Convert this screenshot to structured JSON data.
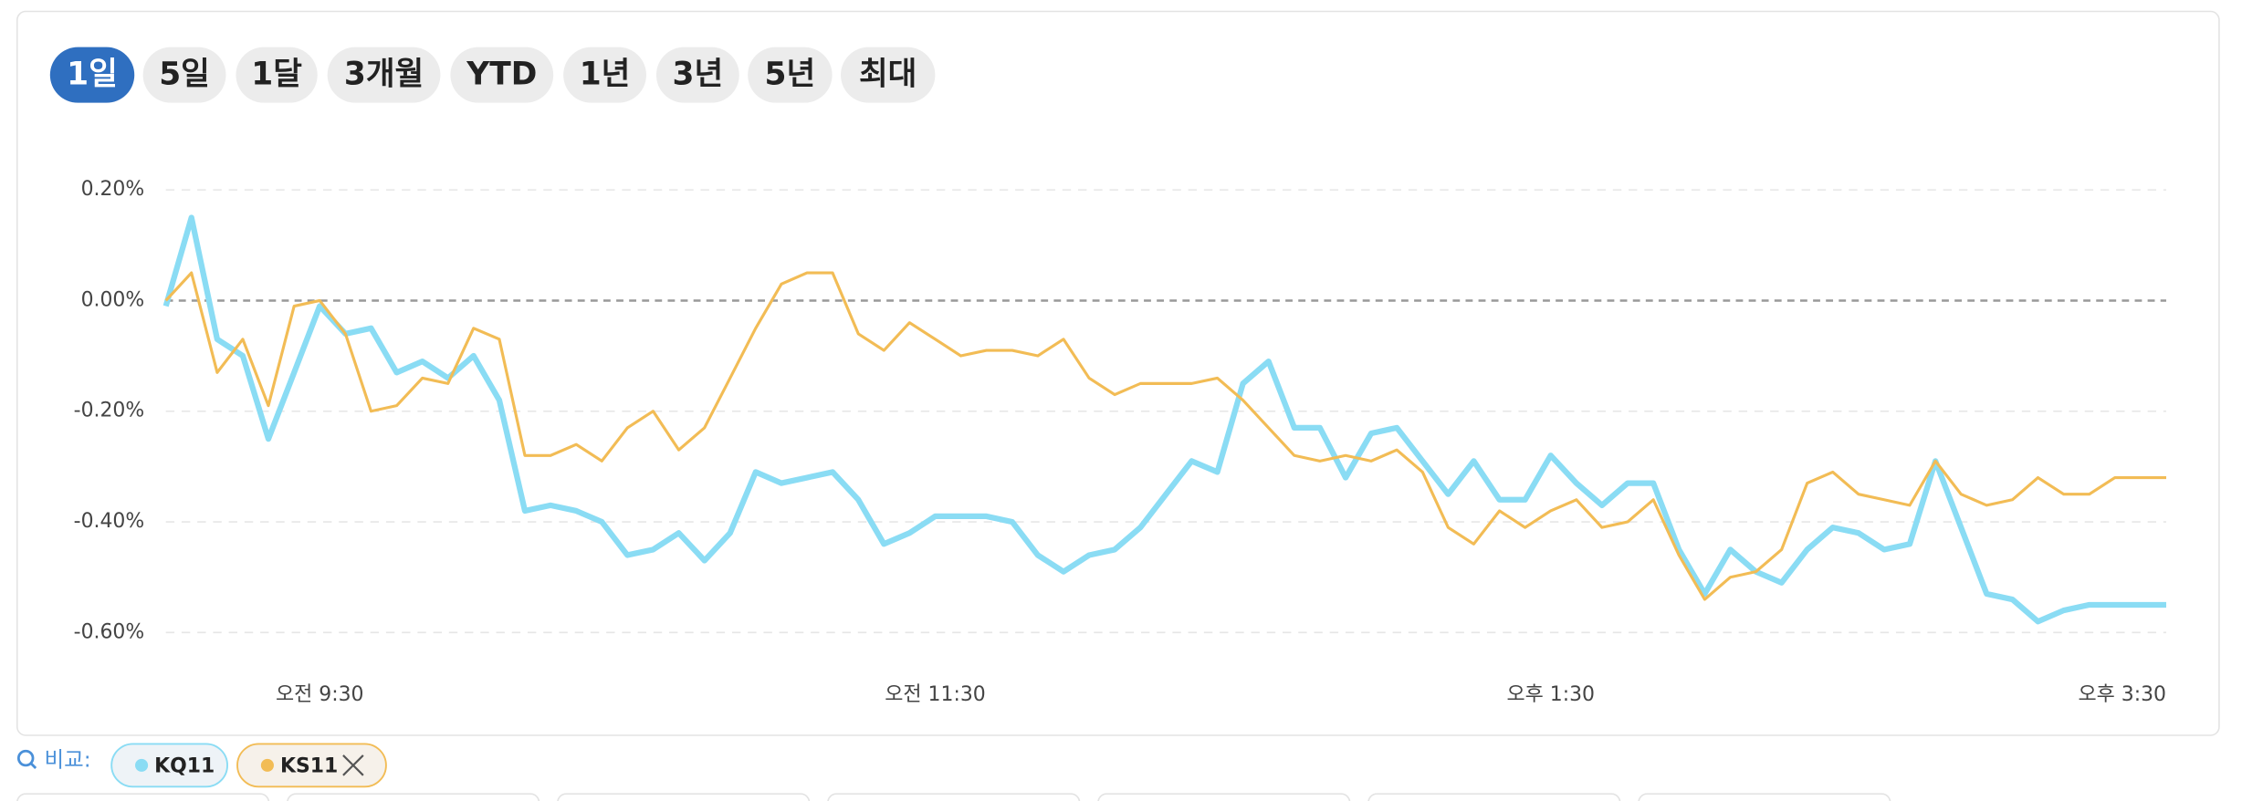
{
  "range_buttons": [
    "1일",
    "5일",
    "1달",
    "3개월",
    "YTD",
    "1년",
    "3년",
    "5년",
    "최대"
  ],
  "active_range": 0,
  "compare_label": "비교:",
  "chart_data": {
    "type": "line",
    "x": [
      0,
      5,
      10,
      15,
      20,
      25,
      30,
      35,
      40,
      45,
      50,
      55,
      60,
      65,
      70,
      75,
      80,
      85,
      90,
      95,
      100,
      105,
      110,
      115,
      120,
      125,
      130,
      135,
      140,
      145,
      150,
      155,
      160,
      165,
      170,
      175,
      180,
      185,
      190,
      195,
      200,
      205,
      210,
      215,
      220,
      225,
      230,
      235,
      240,
      245,
      250,
      255,
      260,
      265,
      270,
      275,
      280,
      285,
      290,
      295,
      300,
      305,
      310,
      315,
      320,
      325,
      330,
      335,
      340,
      345,
      350,
      355,
      360,
      365,
      370,
      375,
      380,
      385,
      390
    ],
    "xlim": [
      0,
      390
    ],
    "xticks": [
      {
        "value": 30,
        "label": "오전 9:30"
      },
      {
        "value": 150,
        "label": "오전 11:30"
      },
      {
        "value": 270,
        "label": "오후 1:30"
      },
      {
        "value": 390,
        "label": "오후 3:30"
      }
    ],
    "ylim": [
      -0.64,
      0.28
    ],
    "yticks": [
      {
        "value": 0.2,
        "label": "0.20%"
      },
      {
        "value": 0,
        "label": "0.00%"
      },
      {
        "value": -0.2,
        "label": "-0.20%"
      },
      {
        "value": -0.4,
        "label": "-0.40%"
      },
      {
        "value": -0.6,
        "label": "-0.60%"
      }
    ],
    "grid": true,
    "series": [
      {
        "name": "KQ11",
        "color": "#8adcf4",
        "values": [
          -0.01,
          0.15,
          -0.07,
          -0.1,
          -0.25,
          -0.13,
          -0.01,
          -0.06,
          -0.05,
          -0.13,
          -0.11,
          -0.14,
          -0.1,
          -0.18,
          -0.38,
          -0.37,
          -0.38,
          -0.4,
          -0.46,
          -0.45,
          -0.42,
          -0.47,
          -0.42,
          -0.31,
          -0.33,
          -0.32,
          -0.31,
          -0.36,
          -0.44,
          -0.42,
          -0.39,
          -0.39,
          -0.39,
          -0.4,
          -0.46,
          -0.49,
          -0.46,
          -0.45,
          -0.41,
          -0.35,
          -0.29,
          -0.31,
          -0.15,
          -0.11,
          -0.23,
          -0.23,
          -0.32,
          -0.24,
          -0.23,
          -0.29,
          -0.35,
          -0.29,
          -0.36,
          -0.36,
          -0.28,
          -0.33,
          -0.37,
          -0.33,
          -0.33,
          -0.45,
          -0.53,
          -0.45,
          -0.49,
          -0.51,
          -0.45,
          -0.41,
          -0.42,
          -0.45,
          -0.44,
          -0.29,
          -0.41,
          -0.53,
          -0.54,
          -0.58,
          -0.56,
          -0.55,
          -0.55,
          -0.55,
          -0.55
        ]
      },
      {
        "name": "KS11",
        "color": "#f2bc55",
        "values": [
          0.0,
          0.05,
          -0.13,
          -0.07,
          -0.19,
          -0.01,
          0.0,
          -0.06,
          -0.2,
          -0.19,
          -0.14,
          -0.15,
          -0.05,
          -0.07,
          -0.28,
          -0.28,
          -0.26,
          -0.29,
          -0.23,
          -0.2,
          -0.27,
          -0.23,
          -0.14,
          -0.05,
          0.03,
          0.05,
          0.05,
          -0.06,
          -0.09,
          -0.04,
          -0.07,
          -0.1,
          -0.09,
          -0.09,
          -0.1,
          -0.07,
          -0.14,
          -0.17,
          -0.15,
          -0.15,
          -0.15,
          -0.14,
          -0.18,
          -0.23,
          -0.28,
          -0.29,
          -0.28,
          -0.29,
          -0.27,
          -0.31,
          -0.41,
          -0.44,
          -0.38,
          -0.41,
          -0.38,
          -0.36,
          -0.41,
          -0.4,
          -0.36,
          -0.46,
          -0.54,
          -0.5,
          -0.49,
          -0.45,
          -0.33,
          -0.31,
          -0.35,
          -0.36,
          -0.37,
          -0.29,
          -0.35,
          -0.37,
          -0.36,
          -0.32,
          -0.35,
          -0.35,
          -0.32,
          -0.32,
          -0.32
        ]
      }
    ]
  }
}
